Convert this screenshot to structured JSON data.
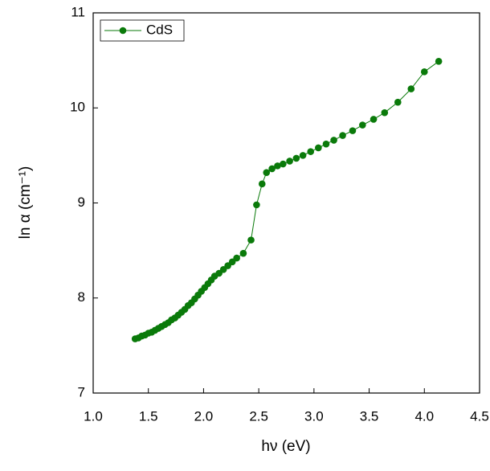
{
  "chart_data": {
    "type": "line",
    "xlabel": "hν (eV)",
    "ylabel": "ln α (cm⁻¹)",
    "xlim": [
      1.0,
      4.5
    ],
    "xticks": [
      {
        "value": 1.0,
        "label": "1.0"
      },
      1.5,
      {
        "value": 2.0,
        "label": "2.0"
      },
      2.5,
      {
        "value": 3.0,
        "label": "3.0"
      },
      3.5,
      {
        "value": 4.0,
        "label": "4.0"
      },
      4.5
    ],
    "ylim": [
      7,
      11
    ],
    "yticks": [
      7,
      8,
      9,
      10,
      11
    ],
    "legend": "upper left",
    "series": [
      {
        "name": "CdS",
        "color": "#0a7a0a",
        "x": [
          1.38,
          1.41,
          1.44,
          1.47,
          1.5,
          1.53,
          1.56,
          1.59,
          1.62,
          1.65,
          1.68,
          1.71,
          1.74,
          1.77,
          1.8,
          1.83,
          1.86,
          1.89,
          1.92,
          1.95,
          1.98,
          2.01,
          2.04,
          2.07,
          2.1,
          2.14,
          2.18,
          2.22,
          2.26,
          2.3,
          2.36,
          2.43,
          2.48,
          2.53,
          2.57,
          2.62,
          2.67,
          2.72,
          2.78,
          2.84,
          2.9,
          2.97,
          3.04,
          3.11,
          3.18,
          3.26,
          3.35,
          3.44,
          3.54,
          3.64,
          3.76,
          3.88,
          4.0,
          4.13
        ],
        "values": [
          7.57,
          7.58,
          7.6,
          7.61,
          7.63,
          7.64,
          7.66,
          7.68,
          7.7,
          7.72,
          7.74,
          7.77,
          7.79,
          7.82,
          7.85,
          7.88,
          7.92,
          7.95,
          7.99,
          8.03,
          8.07,
          8.11,
          8.15,
          8.19,
          8.23,
          8.26,
          8.3,
          8.34,
          8.38,
          8.42,
          8.47,
          8.61,
          8.98,
          9.2,
          9.32,
          9.36,
          9.39,
          9.41,
          9.44,
          9.47,
          9.5,
          9.54,
          9.58,
          9.62,
          9.66,
          9.71,
          9.76,
          9.82,
          9.88,
          9.95,
          10.06,
          10.2,
          10.38,
          10.49
        ]
      }
    ]
  }
}
